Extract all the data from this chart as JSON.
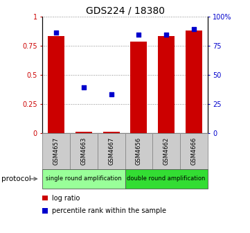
{
  "title": "GDS224 / 18380",
  "samples": [
    "GSM4657",
    "GSM4663",
    "GSM4667",
    "GSM4656",
    "GSM4662",
    "GSM4666"
  ],
  "log_ratio": [
    0.83,
    0.01,
    0.01,
    0.78,
    0.83,
    0.88
  ],
  "percentile_rank": [
    86,
    39,
    33,
    84,
    84,
    89
  ],
  "bar_color": "#cc0000",
  "scatter_color": "#0000cc",
  "ylim_left": [
    0,
    1
  ],
  "ylim_right": [
    0,
    100
  ],
  "yticks_left": [
    0,
    0.25,
    0.5,
    0.75,
    1.0
  ],
  "ytick_labels_left": [
    "0",
    "0.25",
    "0.5",
    "0.75",
    "1"
  ],
  "yticks_right": [
    0,
    25,
    50,
    75,
    100
  ],
  "ytick_labels_right": [
    "0",
    "25",
    "50",
    "75",
    "100%"
  ],
  "left_tick_color": "#cc0000",
  "right_tick_color": "#0000cc",
  "protocol_groups": [
    {
      "label": "single round amplification",
      "start": 0,
      "end": 3,
      "color": "#99ff99"
    },
    {
      "label": "double round amplification",
      "start": 3,
      "end": 6,
      "color": "#33dd33"
    }
  ],
  "protocol_label": "protocol",
  "legend_items": [
    {
      "color": "#cc0000",
      "label": "log ratio"
    },
    {
      "color": "#0000cc",
      "label": "percentile rank within the sample"
    }
  ],
  "grid_color": "#888888",
  "bar_width": 0.6,
  "scatter_marker": "s",
  "scatter_size": 18,
  "sample_box_color": "#cccccc",
  "sample_box_edge": "#888888",
  "title_fontsize": 10,
  "tick_fontsize": 7,
  "sample_fontsize": 6,
  "proto_fontsize": 6,
  "legend_fontsize": 7
}
